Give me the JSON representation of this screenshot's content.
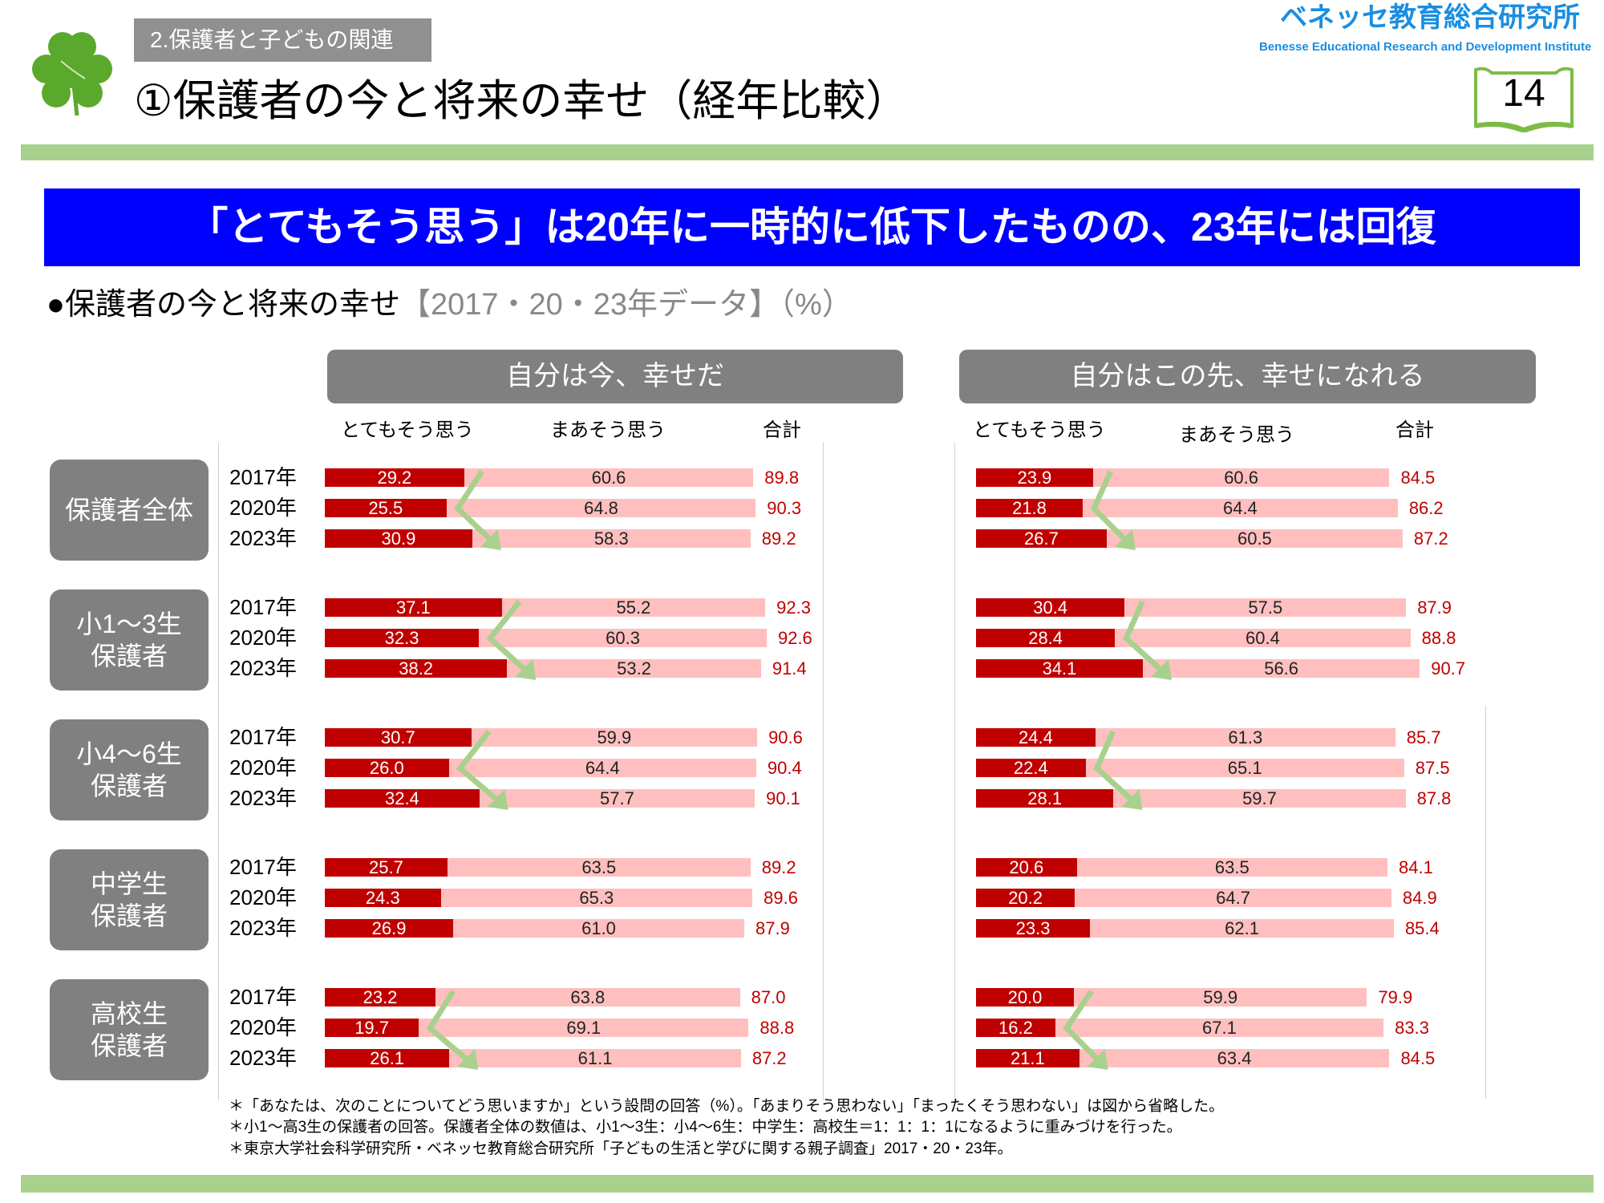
{
  "header": {
    "section": "2.保護者と子どもの関連",
    "title": "①保護者の今と将来の幸せ（経年比較）",
    "logo_jp": "ベネッセ教育総合研究所",
    "logo_en": "Benesse  Educational Research and Development Institute",
    "page_number": "14"
  },
  "banner": "「とてもそう思う」は20年に一時的に低下したものの、23年には回復",
  "subtitle": {
    "main": "●保護者の今と将来の幸せ",
    "note": "【2017・20・23年データ】（%）"
  },
  "colors": {
    "very": "#c00000",
    "somewhat": "#ffbfbf",
    "total": "#c00000",
    "arrow": "#a9d18e",
    "banner": "#0000ff"
  },
  "chart_data": {
    "type": "bar",
    "stacked": true,
    "orientation": "horizontal",
    "unit": "%",
    "column_labels": {
      "very": "とてもそう思う",
      "somewhat": "まあそう思う",
      "total": "合計"
    },
    "years": [
      "2017年",
      "2020年",
      "2023年"
    ],
    "groups": [
      {
        "label": [
          "保護者全体"
        ]
      },
      {
        "label": [
          "小1～3生",
          "保護者"
        ]
      },
      {
        "label": [
          "小4～6生",
          "保護者"
        ]
      },
      {
        "label": [
          "中学生",
          "保護者"
        ]
      },
      {
        "label": [
          "高校生",
          "保護者"
        ]
      }
    ],
    "panels": [
      {
        "title": "自分は今、幸せだ",
        "arrows": [
          true,
          true,
          true,
          false,
          true
        ],
        "series": [
          {
            "name": "とてもそう思う",
            "values": [
              [
                29.2,
                25.5,
                30.9
              ],
              [
                37.1,
                32.3,
                38.2
              ],
              [
                30.7,
                26.0,
                32.4
              ],
              [
                25.7,
                24.3,
                26.9
              ],
              [
                23.2,
                19.7,
                26.1
              ]
            ]
          },
          {
            "name": "まあそう思う",
            "values": [
              [
                60.6,
                64.8,
                58.3
              ],
              [
                55.2,
                60.3,
                53.2
              ],
              [
                59.9,
                64.4,
                57.7
              ],
              [
                63.5,
                65.3,
                61.0
              ],
              [
                63.8,
                69.1,
                61.1
              ]
            ]
          },
          {
            "name": "合計",
            "values": [
              [
                89.8,
                90.3,
                89.2
              ],
              [
                92.3,
                92.6,
                91.4
              ],
              [
                90.6,
                90.4,
                90.1
              ],
              [
                89.2,
                89.6,
                87.9
              ],
              [
                87.0,
                88.8,
                87.2
              ]
            ]
          }
        ]
      },
      {
        "title": "自分はこの先、幸せになれる",
        "arrows": [
          true,
          true,
          true,
          false,
          true
        ],
        "series": [
          {
            "name": "とてもそう思う",
            "values": [
              [
                23.9,
                21.8,
                26.7
              ],
              [
                30.4,
                28.4,
                34.1
              ],
              [
                24.4,
                22.4,
                28.1
              ],
              [
                20.6,
                20.2,
                23.3
              ],
              [
                20.0,
                16.2,
                21.1
              ]
            ]
          },
          {
            "name": "まあそう思う",
            "values": [
              [
                60.6,
                64.4,
                60.5
              ],
              [
                57.5,
                60.4,
                56.6
              ],
              [
                61.3,
                65.1,
                59.7
              ],
              [
                63.5,
                64.7,
                62.1
              ],
              [
                59.9,
                67.1,
                63.4
              ]
            ]
          },
          {
            "name": "合計",
            "values": [
              [
                84.5,
                86.2,
                87.2
              ],
              [
                87.9,
                88.8,
                90.7
              ],
              [
                85.7,
                87.5,
                87.8
              ],
              [
                84.1,
                84.9,
                85.4
              ],
              [
                79.9,
                83.3,
                84.5
              ]
            ]
          }
        ]
      }
    ]
  },
  "footnotes": [
    "＊「あなたは、次のことについてどう思いますか」という設問の回答（%）。「あまりそう思わない」「まったくそう思わない」は図から省略した。",
    "＊小1～高3生の保護者の回答。保護者全体の数値は、小1～3生：小4～6生：中学生：高校生＝1：1：1：1になるように重みづけを行った。",
    "＊東京大学社会科学研究所・ベネッセ教育総合研究所「子どもの生活と学びに関する親子調査」2017・20・23年。"
  ]
}
